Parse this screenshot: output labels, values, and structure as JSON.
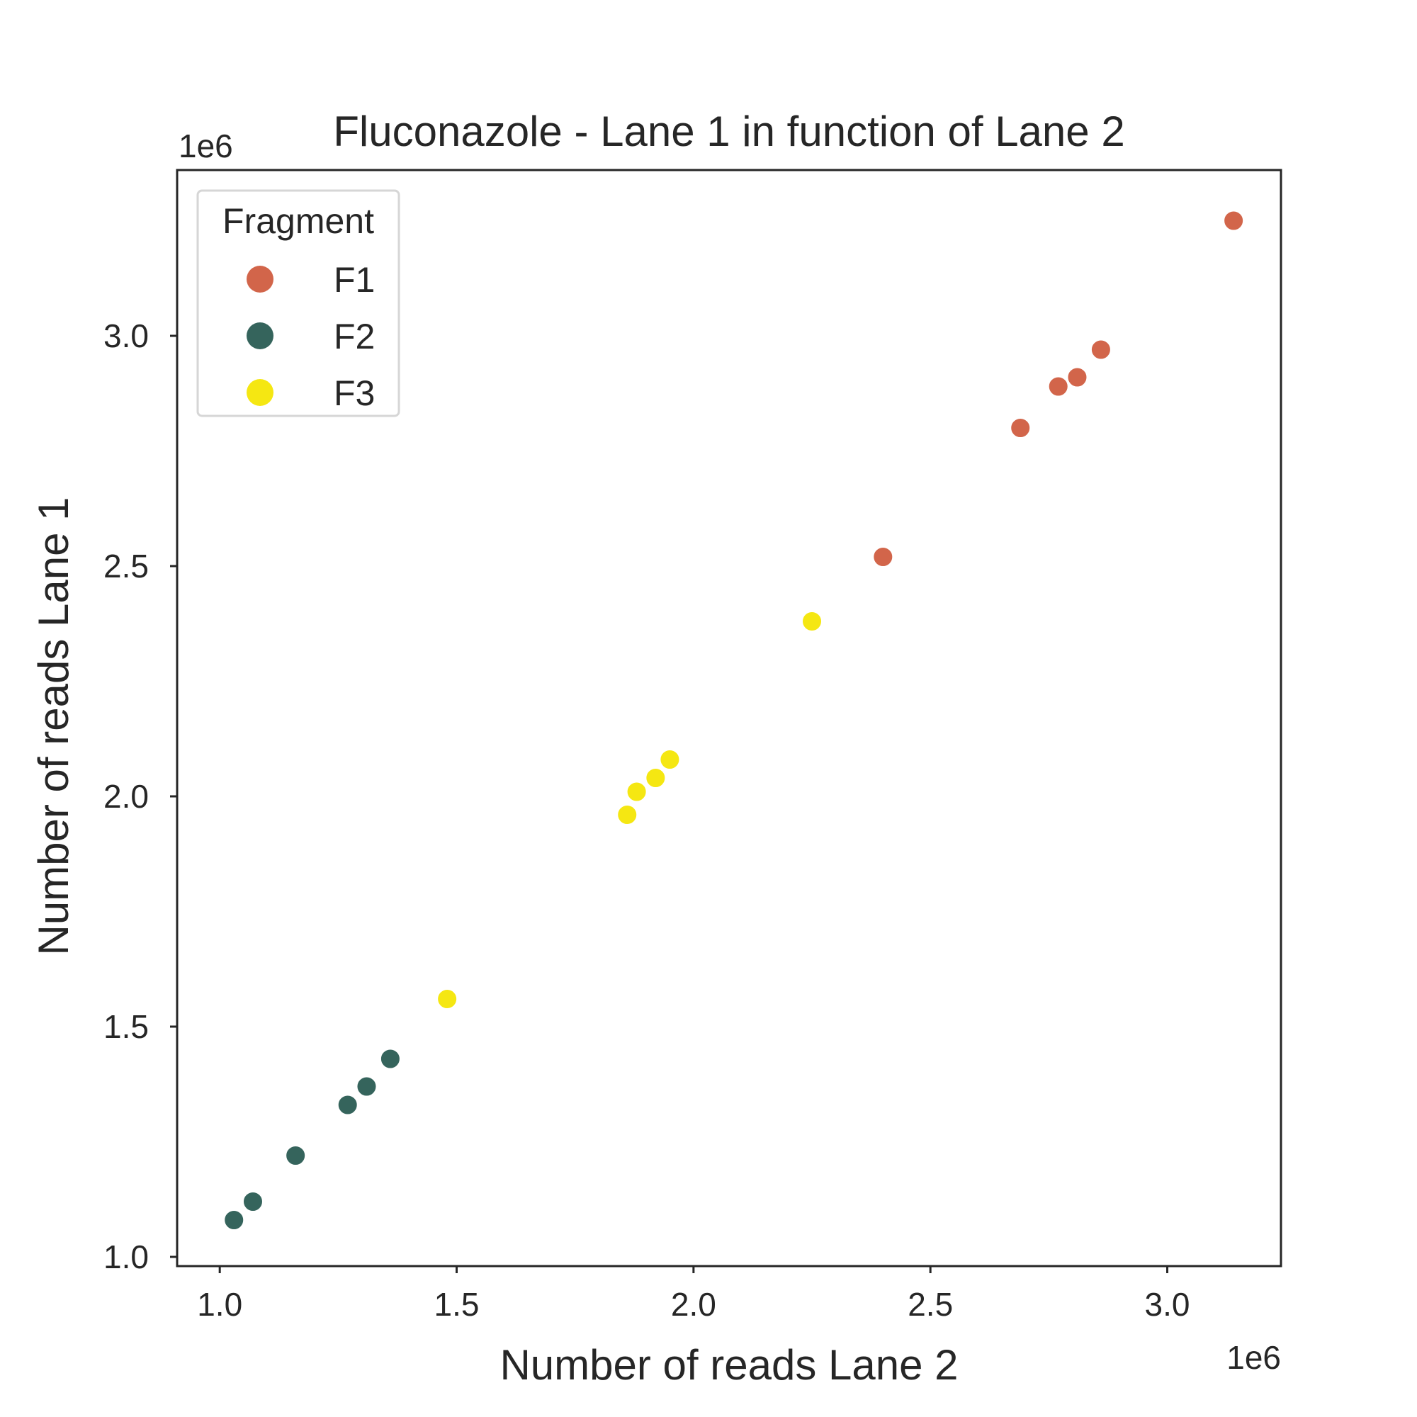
{
  "chart_data": {
    "type": "scatter",
    "title": "Fluconazole - Lane 1 in function of Lane 2",
    "xlabel": "Number of reads Lane 2",
    "ylabel": "Number of reads Lane 1",
    "x_offset_label": "1e6",
    "y_offset_label": "1e6",
    "xlim": [
      0.91,
      3.24
    ],
    "ylim": [
      0.98,
      3.36
    ],
    "x_ticks": [
      1.0,
      1.5,
      2.0,
      2.5,
      3.0
    ],
    "x_tick_labels": [
      "1.0",
      "1.5",
      "2.0",
      "2.5",
      "3.0"
    ],
    "y_ticks": [
      1.0,
      1.5,
      2.0,
      2.5,
      3.0
    ],
    "y_tick_labels": [
      "1.0",
      "1.5",
      "2.0",
      "2.5",
      "3.0"
    ],
    "grid": false,
    "legend": {
      "title": "Fragment",
      "position": "top-left"
    },
    "series": [
      {
        "name": "F1",
        "color": "#d2654a",
        "points": [
          {
            "x": 3.14,
            "y": 3.25
          },
          {
            "x": 2.86,
            "y": 2.97
          },
          {
            "x": 2.81,
            "y": 2.91
          },
          {
            "x": 2.77,
            "y": 2.89
          },
          {
            "x": 2.69,
            "y": 2.8
          },
          {
            "x": 2.4,
            "y": 2.52
          }
        ]
      },
      {
        "name": "F2",
        "color": "#35645c",
        "points": [
          {
            "x": 1.03,
            "y": 1.08
          },
          {
            "x": 1.07,
            "y": 1.12
          },
          {
            "x": 1.16,
            "y": 1.22
          },
          {
            "x": 1.27,
            "y": 1.33
          },
          {
            "x": 1.31,
            "y": 1.37
          },
          {
            "x": 1.36,
            "y": 1.43
          }
        ]
      },
      {
        "name": "F3",
        "color": "#f5e712",
        "points": [
          {
            "x": 1.48,
            "y": 1.56
          },
          {
            "x": 1.86,
            "y": 1.96
          },
          {
            "x": 1.88,
            "y": 2.01
          },
          {
            "x": 1.92,
            "y": 2.04
          },
          {
            "x": 1.95,
            "y": 2.08
          },
          {
            "x": 2.25,
            "y": 2.38
          }
        ]
      }
    ]
  }
}
